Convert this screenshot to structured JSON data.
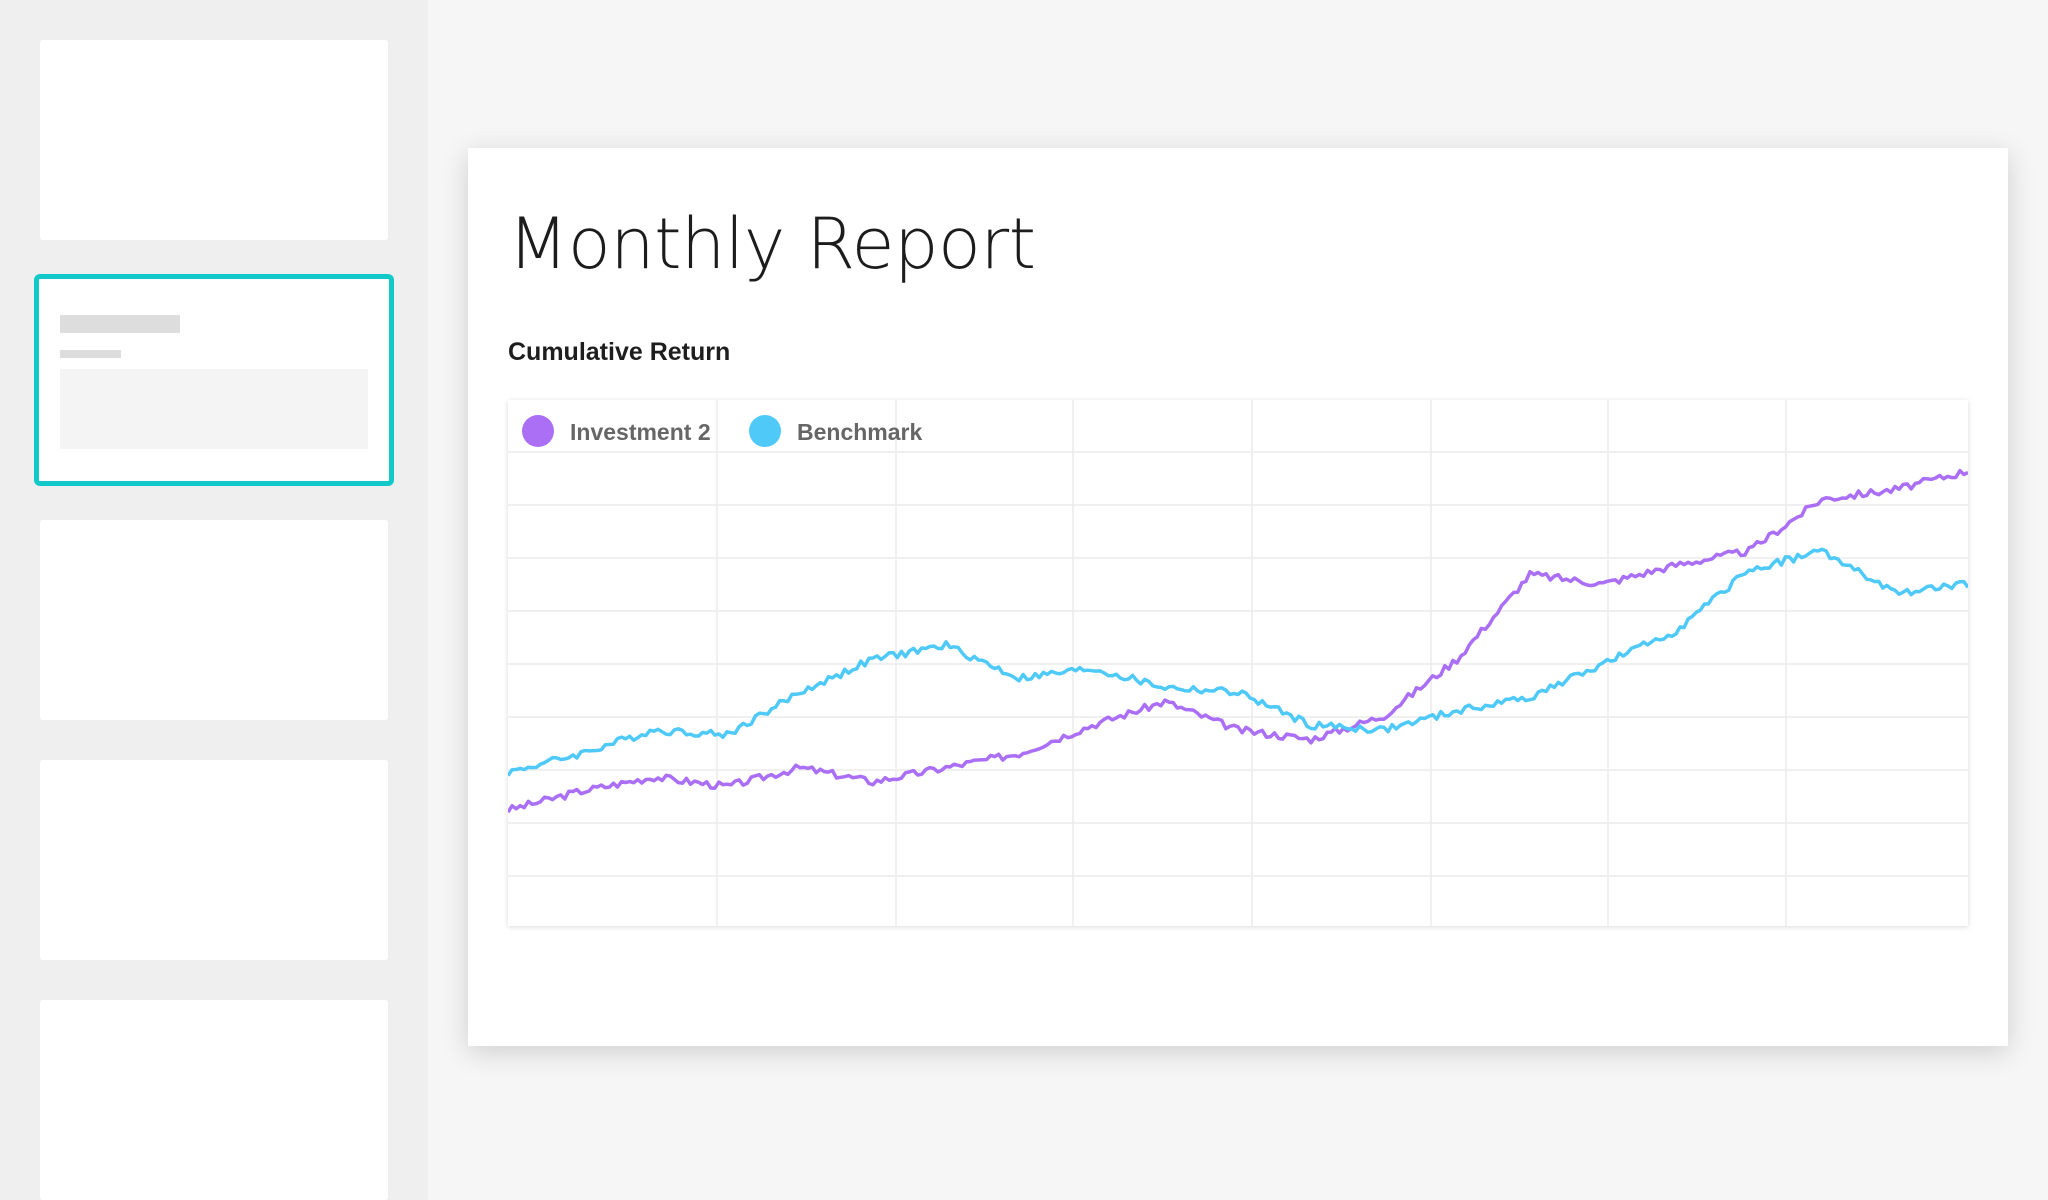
{
  "report": {
    "title": "Monthly Report",
    "chart_heading": "Cumulative Return"
  },
  "colors": {
    "accent": "#12c9c9",
    "investment": "#aa6ff5",
    "benchmark": "#4fcaf8",
    "grid": "#ececec"
  },
  "chart_data": {
    "type": "line",
    "title": "Cumulative Return",
    "xlabel": "",
    "ylabel": "",
    "grid": true,
    "legend_position": "top-left",
    "ylim": [
      0,
      9
    ],
    "x": [
      0,
      5,
      10,
      15,
      20,
      25,
      30,
      35,
      40,
      45,
      50,
      55,
      60,
      65,
      70,
      75,
      80,
      85,
      90,
      95,
      100
    ],
    "series": [
      {
        "name": "Investment 2",
        "color": "#aa6ff5",
        "values": [
          1.4,
          1.8,
          2.1,
          1.9,
          2.3,
          2.0,
          2.3,
          2.6,
          3.2,
          3.7,
          3.1,
          2.9,
          3.4,
          4.6,
          6.4,
          6.2,
          6.6,
          6.9,
          8.0,
          8.2,
          8.6
        ]
      },
      {
        "name": "Benchmark",
        "color": "#4fcaf8",
        "values": [
          2.2,
          2.6,
          3.1,
          3.0,
          3.9,
          4.6,
          4.9,
          4.2,
          4.4,
          4.0,
          3.9,
          3.2,
          3.1,
          3.5,
          3.8,
          4.5,
          5.2,
          6.5,
          6.9,
          6.0,
          6.2
        ]
      }
    ]
  }
}
